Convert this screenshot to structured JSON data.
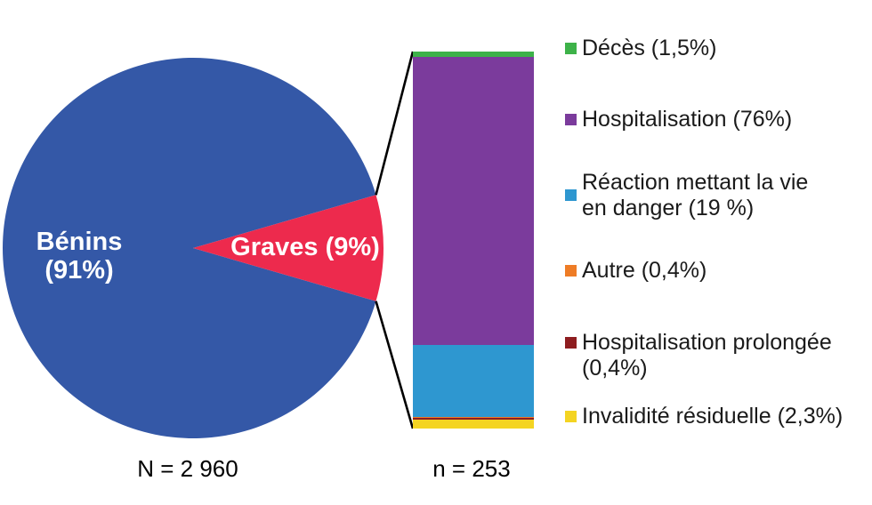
{
  "chart_data": {
    "type": "pie-of-bar",
    "pie": {
      "total_label": "N = 2 960",
      "slices": [
        {
          "label": "Bénins",
          "pct": 91,
          "color": "#3458A7",
          "text": "Bénins\n(91%)"
        },
        {
          "label": "Graves",
          "pct": 9,
          "color": "#ED2A4D",
          "text": "Graves (9%)"
        }
      ]
    },
    "bar": {
      "label": "n = 253",
      "segments": [
        {
          "label": "Décès",
          "pct": 1.5,
          "color": "#3DB249"
        },
        {
          "label": "Hospitalisation",
          "pct": 76,
          "color": "#7B3B9C"
        },
        {
          "label": "Réaction mettant la vie en danger",
          "pct": 19,
          "color": "#2E97D0"
        },
        {
          "label": "Autre",
          "pct": 0.4,
          "color": "#EE7C26"
        },
        {
          "label": "Hospitalisation prolongée",
          "pct": 0.4,
          "color": "#8E1D20"
        },
        {
          "label": "Invalidité résiduelle",
          "pct": 2.3,
          "color": "#F4D422"
        }
      ]
    },
    "legend_position": "right",
    "grid": false
  },
  "legend": {
    "items": [
      {
        "label": "Décès (1,5%)",
        "color": "#3DB249"
      },
      {
        "label": "Hospitalisation (76%)",
        "color": "#7B3B9C"
      },
      {
        "label": "Réaction mettant la vie\nen danger (19 %)",
        "color": "#2E97D0"
      },
      {
        "label": "Autre (0,4%)",
        "color": "#EE7C26"
      },
      {
        "label": "Hospitalisation prolongée\n(0,4%)",
        "color": "#8E1D20"
      },
      {
        "label": "Invalidité résiduelle (2,3%)",
        "color": "#F4D422"
      }
    ]
  },
  "connector_color": "#000000"
}
